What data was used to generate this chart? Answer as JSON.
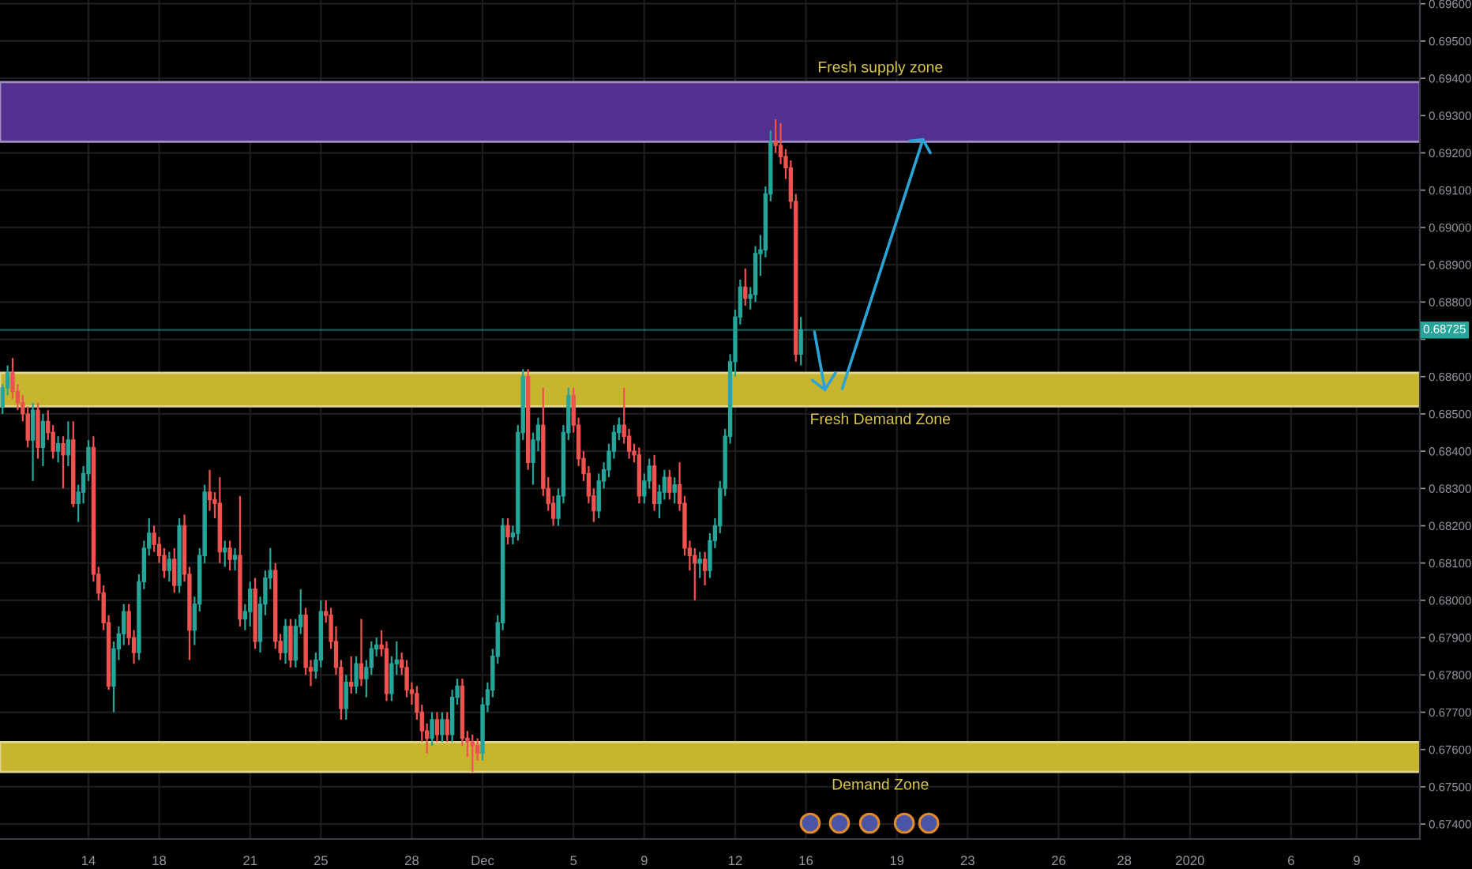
{
  "chart_data": {
    "type": "candlestick",
    "categories": [
      null,
      null,
      null,
      null,
      null,
      null,
      null,
      null,
      null,
      null,
      null,
      null,
      null,
      null,
      null,
      null,
      null,
      "14",
      null,
      null,
      null,
      null,
      null,
      null,
      null,
      null,
      null,
      null,
      null,
      null,
      null,
      "18",
      null,
      null,
      null,
      null,
      null,
      null,
      null,
      null,
      null,
      null,
      null,
      null,
      null,
      null,
      null,
      null,
      null,
      "21",
      null,
      null,
      null,
      null,
      null,
      null,
      null,
      null,
      null,
      null,
      null,
      null,
      null,
      "25",
      null,
      null,
      null,
      null,
      null,
      null,
      null,
      null,
      null,
      null,
      null,
      null,
      null,
      null,
      null,
      null,
      null,
      "28",
      null,
      null,
      null,
      null,
      null,
      null,
      null,
      null,
      null,
      null,
      null,
      null,
      null,
      "Dec",
      null,
      null,
      null,
      null,
      null,
      null,
      null,
      null,
      null,
      null,
      null,
      null,
      null,
      null,
      null,
      null,
      null,
      "5",
      null,
      null,
      null,
      null,
      null,
      null,
      null,
      null,
      null,
      null,
      null,
      null,
      null,
      "9",
      null,
      null,
      null,
      null,
      null,
      null,
      null,
      null,
      null,
      null,
      null,
      null,
      null,
      null,
      null,
      null,
      null,
      "12",
      null,
      null,
      null,
      null,
      null,
      null,
      null,
      null,
      null,
      null,
      null,
      null,
      null,
      "16",
      null,
      null,
      null,
      null,
      null,
      null,
      null,
      null,
      null,
      null,
      null,
      null,
      null,
      null,
      null,
      null,
      null,
      "19",
      null,
      null,
      null,
      null,
      null,
      null,
      null,
      null,
      null,
      null,
      null,
      null,
      null,
      "23",
      null,
      null,
      null,
      null,
      null,
      null,
      null,
      null,
      null,
      null,
      null,
      null,
      null,
      null,
      null,
      null,
      null,
      "26",
      null,
      null,
      null,
      null,
      null,
      null,
      null,
      null,
      null,
      null,
      null,
      null,
      "28",
      null,
      null,
      null,
      null,
      null,
      null,
      null,
      null,
      null,
      null,
      null,
      null,
      "2020",
      null,
      null,
      null,
      null,
      null,
      null,
      null,
      null,
      null,
      null,
      null,
      null,
      null,
      null,
      null,
      null,
      null,
      null,
      null,
      "6",
      null,
      null,
      null,
      null,
      null,
      null,
      null,
      null,
      null,
      null,
      null,
      null,
      "9",
      null,
      null,
      null,
      null,
      null,
      null,
      null,
      null,
      null,
      null,
      null,
      null
    ],
    "ohlc": [
      [
        0.6852,
        0.6858,
        0.685,
        0.6857
      ],
      [
        0.6857,
        0.6863,
        0.6855,
        0.6861
      ],
      [
        0.6861,
        0.6865,
        0.6854,
        0.6856
      ],
      [
        0.6856,
        0.6858,
        0.6851,
        0.6853
      ],
      [
        0.6853,
        0.6855,
        0.6848,
        0.685
      ],
      [
        0.685,
        0.6852,
        0.6841,
        0.6843
      ],
      [
        0.6843,
        0.6853,
        0.6832,
        0.6851
      ],
      [
        0.6851,
        0.6853,
        0.6838,
        0.6841
      ],
      [
        0.6841,
        0.685,
        0.6836,
        0.6848
      ],
      [
        0.6848,
        0.6851,
        0.6843,
        0.6845
      ],
      [
        0.6845,
        0.6847,
        0.6838,
        0.684
      ],
      [
        0.684,
        0.6844,
        0.6837,
        0.6842
      ],
      [
        0.6842,
        0.6844,
        0.683,
        0.6839
      ],
      [
        0.6839,
        0.6848,
        0.6836,
        0.6843
      ],
      [
        0.6843,
        0.6848,
        0.6825,
        0.6826
      ],
      [
        0.6826,
        0.6831,
        0.6821,
        0.6829
      ],
      [
        0.6829,
        0.6836,
        0.6826,
        0.6834
      ],
      [
        0.6834,
        0.6843,
        0.6832,
        0.6841
      ],
      [
        0.6841,
        0.6844,
        0.6805,
        0.6807
      ],
      [
        0.6807,
        0.6809,
        0.68,
        0.6802
      ],
      [
        0.6802,
        0.6804,
        0.6792,
        0.6794
      ],
      [
        0.6794,
        0.6796,
        0.6776,
        0.6777
      ],
      [
        0.6777,
        0.6789,
        0.677,
        0.6787
      ],
      [
        0.6787,
        0.6793,
        0.6784,
        0.6791
      ],
      [
        0.6791,
        0.6799,
        0.6788,
        0.6797
      ],
      [
        0.6797,
        0.6799,
        0.6788,
        0.679
      ],
      [
        0.679,
        0.6792,
        0.6783,
        0.6786
      ],
      [
        0.6786,
        0.6807,
        0.6784,
        0.6805
      ],
      [
        0.6805,
        0.6816,
        0.6803,
        0.6814
      ],
      [
        0.6814,
        0.6822,
        0.6812,
        0.6818
      ],
      [
        0.6818,
        0.682,
        0.6813,
        0.6815
      ],
      [
        0.6815,
        0.6817,
        0.681,
        0.6812
      ],
      [
        0.6812,
        0.6814,
        0.6806,
        0.6808
      ],
      [
        0.6808,
        0.6813,
        0.6805,
        0.6811
      ],
      [
        0.6811,
        0.6814,
        0.6802,
        0.6804
      ],
      [
        0.6804,
        0.6822,
        0.6802,
        0.682
      ],
      [
        0.682,
        0.6823,
        0.6805,
        0.6807
      ],
      [
        0.6807,
        0.6809,
        0.6784,
        0.6792
      ],
      [
        0.6792,
        0.6801,
        0.6788,
        0.6799
      ],
      [
        0.6799,
        0.6814,
        0.6797,
        0.6812
      ],
      [
        0.6812,
        0.6831,
        0.681,
        0.6829
      ],
      [
        0.6829,
        0.6835,
        0.6824,
        0.6827
      ],
      [
        0.6827,
        0.6829,
        0.6822,
        0.6826
      ],
      [
        0.6826,
        0.6833,
        0.681,
        0.6813
      ],
      [
        0.6813,
        0.6816,
        0.6809,
        0.6814
      ],
      [
        0.6814,
        0.6816,
        0.6808,
        0.6811
      ],
      [
        0.6811,
        0.6814,
        0.6808,
        0.6812
      ],
      [
        0.6812,
        0.6828,
        0.6793,
        0.6795
      ],
      [
        0.6795,
        0.6799,
        0.6792,
        0.6797
      ],
      [
        0.6797,
        0.6805,
        0.6793,
        0.6803
      ],
      [
        0.6803,
        0.6806,
        0.6787,
        0.6789
      ],
      [
        0.6789,
        0.6801,
        0.6786,
        0.6799
      ],
      [
        0.6799,
        0.6808,
        0.6796,
        0.6806
      ],
      [
        0.6806,
        0.6814,
        0.6803,
        0.6808
      ],
      [
        0.6808,
        0.681,
        0.6787,
        0.6789
      ],
      [
        0.6789,
        0.6791,
        0.6784,
        0.6786
      ],
      [
        0.6786,
        0.6795,
        0.6783,
        0.6793
      ],
      [
        0.6793,
        0.6795,
        0.6782,
        0.6784
      ],
      [
        0.6784,
        0.6795,
        0.6782,
        0.6793
      ],
      [
        0.6793,
        0.6803,
        0.6791,
        0.6796
      ],
      [
        0.6796,
        0.6798,
        0.678,
        0.6782
      ],
      [
        0.6782,
        0.6784,
        0.6777,
        0.6781
      ],
      [
        0.6781,
        0.6786,
        0.6779,
        0.6784
      ],
      [
        0.6784,
        0.68,
        0.6782,
        0.6797
      ],
      [
        0.6797,
        0.68,
        0.6794,
        0.6796
      ],
      [
        0.6796,
        0.6798,
        0.6787,
        0.6789
      ],
      [
        0.6789,
        0.6793,
        0.678,
        0.6782
      ],
      [
        0.6782,
        0.6784,
        0.6768,
        0.6771
      ],
      [
        0.6771,
        0.678,
        0.6768,
        0.6778
      ],
      [
        0.6778,
        0.6785,
        0.6775,
        0.6777
      ],
      [
        0.6777,
        0.6785,
        0.6775,
        0.6783
      ],
      [
        0.6783,
        0.6795,
        0.6777,
        0.6779
      ],
      [
        0.6779,
        0.6784,
        0.6774,
        0.6782
      ],
      [
        0.6782,
        0.6789,
        0.678,
        0.6787
      ],
      [
        0.6787,
        0.679,
        0.6785,
        0.6788
      ],
      [
        0.6788,
        0.6792,
        0.6785,
        0.6787
      ],
      [
        0.6787,
        0.6789,
        0.6773,
        0.6775
      ],
      [
        0.6775,
        0.6785,
        0.6773,
        0.6783
      ],
      [
        0.6783,
        0.6789,
        0.678,
        0.6784
      ],
      [
        0.6784,
        0.6786,
        0.678,
        0.6782
      ],
      [
        0.6782,
        0.6784,
        0.6774,
        0.6776
      ],
      [
        0.6776,
        0.6778,
        0.6772,
        0.6775
      ],
      [
        0.6775,
        0.6777,
        0.6768,
        0.677
      ],
      [
        0.677,
        0.6772,
        0.6762,
        0.6765
      ],
      [
        0.6765,
        0.6767,
        0.6759,
        0.6763
      ],
      [
        0.6763,
        0.677,
        0.6761,
        0.6768
      ],
      [
        0.6768,
        0.677,
        0.6762,
        0.6764
      ],
      [
        0.6764,
        0.677,
        0.6762,
        0.6768
      ],
      [
        0.6768,
        0.677,
        0.6762,
        0.6764
      ],
      [
        0.6764,
        0.6776,
        0.6762,
        0.6774
      ],
      [
        0.6774,
        0.6779,
        0.6772,
        0.6777
      ],
      [
        0.6777,
        0.6779,
        0.6761,
        0.6763
      ],
      [
        0.6763,
        0.6765,
        0.6758,
        0.6762
      ],
      [
        0.6762,
        0.6764,
        0.6754,
        0.6761
      ],
      [
        0.6761,
        0.6763,
        0.6757,
        0.6759
      ],
      [
        0.6759,
        0.6774,
        0.6757,
        0.6772
      ],
      [
        0.6772,
        0.6778,
        0.677,
        0.6776
      ],
      [
        0.6776,
        0.6787,
        0.6774,
        0.6785
      ],
      [
        0.6785,
        0.6796,
        0.6783,
        0.6794
      ],
      [
        0.6794,
        0.6822,
        0.6792,
        0.682
      ],
      [
        0.682,
        0.6822,
        0.6815,
        0.6817
      ],
      [
        0.6817,
        0.682,
        0.6815,
        0.6818
      ],
      [
        0.6818,
        0.6847,
        0.6816,
        0.6845
      ],
      [
        0.6845,
        0.6862,
        0.6843,
        0.686
      ],
      [
        0.686,
        0.6862,
        0.6835,
        0.6837
      ],
      [
        0.6837,
        0.6845,
        0.6831,
        0.6843
      ],
      [
        0.6843,
        0.6849,
        0.684,
        0.6847
      ],
      [
        0.6847,
        0.6857,
        0.6828,
        0.683
      ],
      [
        0.683,
        0.6833,
        0.6824,
        0.6826
      ],
      [
        0.6826,
        0.6828,
        0.682,
        0.6822
      ],
      [
        0.6822,
        0.683,
        0.682,
        0.6828
      ],
      [
        0.6828,
        0.6847,
        0.6826,
        0.6845
      ],
      [
        0.6845,
        0.6857,
        0.6843,
        0.6855
      ],
      [
        0.6855,
        0.6857,
        0.6845,
        0.6847
      ],
      [
        0.6847,
        0.6849,
        0.6836,
        0.6838
      ],
      [
        0.6838,
        0.684,
        0.6832,
        0.6834
      ],
      [
        0.6834,
        0.6836,
        0.6826,
        0.6828
      ],
      [
        0.6828,
        0.683,
        0.6821,
        0.6824
      ],
      [
        0.6824,
        0.6834,
        0.6822,
        0.6832
      ],
      [
        0.6832,
        0.6837,
        0.683,
        0.6835
      ],
      [
        0.6835,
        0.6842,
        0.6833,
        0.684
      ],
      [
        0.684,
        0.6847,
        0.6838,
        0.6845
      ],
      [
        0.6845,
        0.6849,
        0.6843,
        0.6847
      ],
      [
        0.6847,
        0.6857,
        0.6842,
        0.6844
      ],
      [
        0.6844,
        0.6846,
        0.6838,
        0.684
      ],
      [
        0.684,
        0.6842,
        0.6837,
        0.6839
      ],
      [
        0.6839,
        0.6841,
        0.6826,
        0.6828
      ],
      [
        0.6828,
        0.6834,
        0.6826,
        0.6832
      ],
      [
        0.6832,
        0.6838,
        0.683,
        0.6836
      ],
      [
        0.6836,
        0.6839,
        0.6824,
        0.6826
      ],
      [
        0.6826,
        0.6831,
        0.6822,
        0.6829
      ],
      [
        0.6829,
        0.6835,
        0.6827,
        0.6833
      ],
      [
        0.6833,
        0.6835,
        0.6827,
        0.6829
      ],
      [
        0.6829,
        0.6833,
        0.6826,
        0.6831
      ],
      [
        0.6831,
        0.6837,
        0.6824,
        0.6826
      ],
      [
        0.6826,
        0.6828,
        0.6812,
        0.6814
      ],
      [
        0.6814,
        0.6816,
        0.6808,
        0.6812
      ],
      [
        0.6812,
        0.6814,
        0.68,
        0.681
      ],
      [
        0.681,
        0.6813,
        0.6806,
        0.6811
      ],
      [
        0.6811,
        0.6813,
        0.6804,
        0.6808
      ],
      [
        0.6808,
        0.6818,
        0.6806,
        0.6816
      ],
      [
        0.6816,
        0.6822,
        0.6814,
        0.682
      ],
      [
        0.682,
        0.6832,
        0.6818,
        0.683
      ],
      [
        0.683,
        0.6846,
        0.6828,
        0.6844
      ],
      [
        0.6844,
        0.6866,
        0.6842,
        0.6864
      ],
      [
        0.6864,
        0.6878,
        0.686,
        0.6876
      ],
      [
        0.6876,
        0.6886,
        0.6874,
        0.6884
      ],
      [
        0.6884,
        0.6889,
        0.6879,
        0.6881
      ],
      [
        0.6881,
        0.6884,
        0.6878,
        0.6882
      ],
      [
        0.6882,
        0.6895,
        0.688,
        0.6893
      ],
      [
        0.6893,
        0.6898,
        0.6887,
        0.6894
      ],
      [
        0.6894,
        0.6911,
        0.6892,
        0.6909
      ],
      [
        0.6909,
        0.6926,
        0.6907,
        0.6923
      ],
      [
        0.6923,
        0.6929,
        0.692,
        0.6922
      ],
      [
        0.6922,
        0.6928,
        0.6917,
        0.6919
      ],
      [
        0.6919,
        0.6921,
        0.6913,
        0.6916
      ],
      [
        0.6916,
        0.6918,
        0.6905,
        0.6907
      ],
      [
        0.6907,
        0.6909,
        0.6864,
        0.6866
      ],
      [
        0.6866,
        0.6876,
        0.6863,
        0.68725
      ],
      null,
      null,
      null,
      null,
      null,
      null,
      null,
      null,
      null,
      null,
      null,
      null,
      null,
      null,
      null,
      null,
      null,
      null,
      null,
      null,
      null,
      null,
      null,
      null,
      null,
      null,
      null,
      null,
      null,
      null,
      null,
      null,
      null,
      null,
      null,
      null,
      null,
      null,
      null,
      null,
      null,
      null,
      null,
      null,
      null,
      null,
      null,
      null,
      null,
      null,
      null,
      null,
      null,
      null,
      null,
      null,
      null,
      null,
      null,
      null,
      null,
      null,
      null,
      null,
      null,
      null,
      null,
      null,
      null,
      null,
      null,
      null,
      null,
      null,
      null,
      null,
      null,
      null,
      null,
      null,
      null,
      null,
      null,
      null,
      null,
      null,
      null,
      null,
      null,
      null,
      null,
      null,
      null,
      null,
      null,
      null,
      null,
      null,
      null,
      null,
      null,
      null,
      null,
      null,
      null,
      null,
      null,
      null,
      null,
      null,
      null,
      null,
      null,
      null,
      null,
      null,
      null,
      null,
      null,
      null,
      null,
      null
    ],
    "colors": [
      "#26a69a",
      "#26a69a",
      "#ef5350",
      "#ef5350",
      "#ef5350",
      "#ef5350",
      "#26a69a",
      "#ef5350",
      "#26a69a",
      "#ef5350",
      "#ef5350",
      "#26a69a",
      "#ef5350",
      "#26a69a",
      "#ef5350",
      "#26a69a",
      "#26a69a",
      "#26a69a",
      "#ef5350",
      "#ef5350",
      "#ef5350",
      "#ef5350",
      "#26a69a",
      "#26a69a",
      "#26a69a",
      "#ef5350",
      "#ef5350",
      "#26a69a",
      "#26a69a",
      "#26a69a",
      "#ef5350",
      "#ef5350",
      "#ef5350",
      "#26a69a",
      "#ef5350",
      "#26a69a",
      "#ef5350",
      "#ef5350",
      "#26a69a",
      "#26a69a",
      "#26a69a",
      "#ef5350",
      "#ef5350",
      "#ef5350",
      "#26a69a",
      "#ef5350",
      "#26a69a",
      "#ef5350",
      "#26a69a",
      "#26a69a",
      "#ef5350",
      "#26a69a",
      "#26a69a",
      "#26a69a",
      "#ef5350",
      "#ef5350",
      "#26a69a",
      "#ef5350",
      "#26a69a",
      "#26a69a",
      "#ef5350",
      "#ef5350",
      "#26a69a",
      "#26a69a",
      "#ef5350",
      "#ef5350",
      "#ef5350",
      "#ef5350",
      "#26a69a",
      "#ef5350",
      "#26a69a",
      "#ef5350",
      "#26a69a",
      "#26a69a",
      "#26a69a",
      "#ef5350",
      "#ef5350",
      "#26a69a",
      "#26a69a",
      "#ef5350",
      "#ef5350",
      "#ef5350",
      "#ef5350",
      "#ef5350",
      "#ef5350",
      "#26a69a",
      "#ef5350",
      "#26a69a",
      "#ef5350",
      "#26a69a",
      "#26a69a",
      "#ef5350",
      "#ef5350",
      "#ef5350",
      "#ef5350",
      "#26a69a",
      "#26a69a",
      "#26a69a",
      "#26a69a",
      "#26a69a",
      "#ef5350",
      "#26a69a",
      "#26a69a",
      "#26a69a",
      "#ef5350",
      "#26a69a",
      "#26a69a",
      "#ef5350",
      "#ef5350",
      "#ef5350",
      "#26a69a",
      "#26a69a",
      "#26a69a",
      "#ef5350",
      "#ef5350",
      "#ef5350",
      "#ef5350",
      "#ef5350",
      "#26a69a",
      "#26a69a",
      "#26a69a",
      "#26a69a",
      "#26a69a",
      "#ef5350",
      "#ef5350",
      "#ef5350",
      "#ef5350",
      "#26a69a",
      "#26a69a",
      "#ef5350",
      "#26a69a",
      "#26a69a",
      "#ef5350",
      "#26a69a",
      "#ef5350",
      "#ef5350",
      "#ef5350",
      "#ef5350",
      "#26a69a",
      "#ef5350",
      "#26a69a",
      "#26a69a",
      "#26a69a",
      "#26a69a",
      "#26a69a",
      "#26a69a",
      "#26a69a",
      "#ef5350",
      "#26a69a",
      "#26a69a",
      "#26a69a",
      "#26a69a",
      "#26a69a",
      "#ef5350",
      "#ef5350",
      "#ef5350",
      "#ef5350",
      "#ef5350",
      "#26a69a",
      null,
      null,
      null,
      null,
      null,
      null,
      null,
      null,
      null,
      null,
      null,
      null,
      null,
      null,
      null,
      null,
      null,
      null,
      null,
      null,
      null,
      null,
      null,
      null,
      null,
      null,
      null,
      null,
      null,
      null,
      null,
      null,
      null,
      null,
      null,
      null,
      null,
      null,
      null,
      null,
      null,
      null,
      null,
      null,
      null,
      null,
      null,
      null,
      null,
      null,
      null,
      null,
      null,
      null,
      null,
      null,
      null,
      null,
      null,
      null,
      null,
      null,
      null,
      null,
      null,
      null,
      null,
      null,
      null,
      null,
      null,
      null,
      null,
      null,
      null,
      null,
      null,
      null,
      null,
      null,
      null,
      null,
      null,
      null,
      null,
      null,
      null,
      null,
      null,
      null,
      null,
      null,
      null,
      null,
      null,
      null,
      null,
      null,
      null,
      null,
      null,
      null,
      null,
      null,
      null,
      null,
      null,
      null,
      null,
      null,
      null,
      null,
      null,
      null,
      null,
      null,
      null,
      null,
      null,
      null,
      null,
      null
    ],
    "ylim": [
      0.6736,
      0.6961
    ],
    "yticks": [
      {
        "value": 0.674,
        "label": "0.67400"
      },
      {
        "value": 0.675,
        "label": "0.67500"
      },
      {
        "value": 0.676,
        "label": "0.67600"
      },
      {
        "value": 0.677,
        "label": "0.67700"
      },
      {
        "value": 0.678,
        "label": "0.67800"
      },
      {
        "value": 0.679,
        "label": "0.67900"
      },
      {
        "value": 0.68,
        "label": "0.68000"
      },
      {
        "value": 0.681,
        "label": "0.68100"
      },
      {
        "value": 0.682,
        "label": "0.68200"
      },
      {
        "value": 0.683,
        "label": "0.68300"
      },
      {
        "value": 0.684,
        "label": "0.68400"
      },
      {
        "value": 0.685,
        "label": "0.68500"
      },
      {
        "value": 0.686,
        "label": "0.68600"
      },
      {
        "value": 0.687,
        "label": null
      },
      {
        "value": 0.688,
        "label": "0.68800"
      },
      {
        "value": 0.689,
        "label": "0.68900"
      },
      {
        "value": 0.69,
        "label": "0.69000"
      },
      {
        "value": 0.691,
        "label": "0.69100"
      },
      {
        "value": 0.692,
        "label": "0.69200"
      },
      {
        "value": 0.693,
        "label": "0.69300"
      },
      {
        "value": 0.694,
        "label": "0.69400"
      },
      {
        "value": 0.695,
        "label": "0.69500"
      },
      {
        "value": 0.696,
        "label": "0.69600"
      }
    ],
    "ref_lines": [
      {
        "axis": "y",
        "value": 0.68725,
        "label": "0.68725",
        "color": "#26a69a"
      }
    ],
    "bands": [
      {
        "axis": "y",
        "from": 0.6923,
        "to": 0.6939,
        "label": "Fresh supply zone",
        "color": "#52308f"
      },
      {
        "axis": "y",
        "from": 0.6852,
        "to": 0.6861,
        "label": "Fresh Demand Zone",
        "color": "#c8b52f"
      },
      {
        "axis": "y",
        "from": 0.6754,
        "to": 0.6762,
        "label": "Demand Zone",
        "color": "#c8b52f"
      }
    ],
    "grid": true
  }
}
